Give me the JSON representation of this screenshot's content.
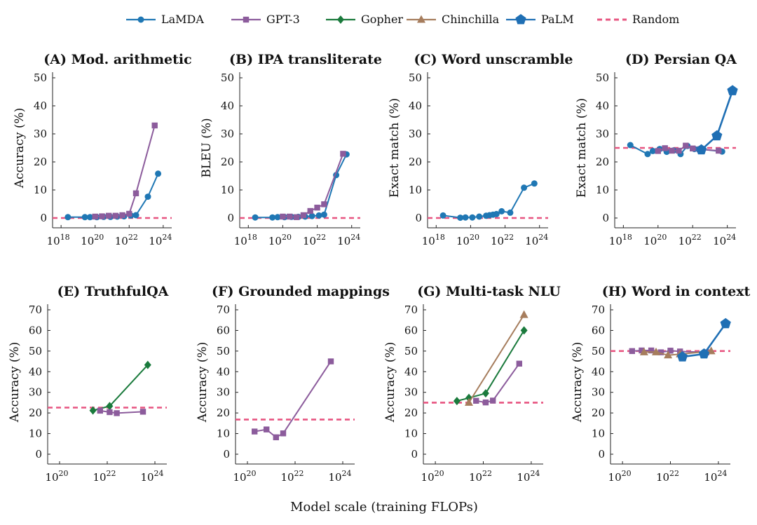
{
  "legend": [
    {
      "name": "LaMDA",
      "color": "#1f77b4",
      "marker": "circle"
    },
    {
      "name": "GPT-3",
      "color": "#8c5c9c",
      "marker": "square"
    },
    {
      "name": "Gopher",
      "color": "#1a7a3c",
      "marker": "diamond"
    },
    {
      "name": "Chinchilla",
      "color": "#a67d5d",
      "marker": "triangle"
    },
    {
      "name": "PaLM",
      "color": "#1f6fb4",
      "marker": "pentagon"
    },
    {
      "name": "Random",
      "color": "#e75480",
      "marker": "dashed-line"
    }
  ],
  "xlabel": "Model scale (training FLOPs)",
  "chart_data": [
    {
      "type": "line",
      "title": "(A) Mod. arithmetic",
      "ylabel": "Accuracy (%)",
      "ylim": [
        0,
        50
      ],
      "yticks": [
        0,
        10,
        20,
        30,
        40,
        50
      ],
      "xlim_log10": [
        17.5,
        24.5
      ],
      "xticks_log10": [
        18,
        20,
        22,
        24
      ],
      "random": 0,
      "series": [
        {
          "name": "LaMDA",
          "x_log10": [
            18.4,
            19.4,
            19.7,
            20.1,
            20.5,
            20.9,
            21.3,
            21.7,
            22.1,
            22.4,
            23.1,
            23.7
          ],
          "y": [
            0.3,
            0.3,
            0.3,
            0.3,
            0.4,
            0.4,
            0.5,
            0.6,
            0.9,
            1.0,
            7.6,
            15.8
          ]
        },
        {
          "name": "GPT-3",
          "x_log10": [
            20.0,
            20.4,
            20.8,
            21.2,
            21.6,
            22.0,
            22.4,
            23.5
          ],
          "y": [
            0.5,
            0.6,
            0.8,
            0.8,
            1.0,
            1.5,
            8.8,
            33.0
          ]
        }
      ]
    },
    {
      "type": "line",
      "title": "(B) IPA transliterate",
      "ylabel": "BLEU (%)",
      "ylim": [
        0,
        50
      ],
      "yticks": [
        0,
        10,
        20,
        30,
        40,
        50
      ],
      "xlim_log10": [
        17.5,
        24.5
      ],
      "xticks_log10": [
        18,
        20,
        22,
        24
      ],
      "random": 0,
      "series": [
        {
          "name": "LaMDA",
          "x_log10": [
            18.4,
            19.4,
            19.7,
            20.1,
            20.5,
            20.9,
            21.3,
            21.7,
            22.1,
            22.4,
            23.1,
            23.7
          ],
          "y": [
            0.2,
            0.2,
            0.3,
            0.3,
            0.4,
            0.4,
            0.5,
            0.7,
            0.9,
            1.2,
            15.3,
            22.7
          ]
        },
        {
          "name": "GPT-3",
          "x_log10": [
            20.0,
            20.4,
            20.8,
            21.2,
            21.6,
            22.0,
            22.4,
            23.5
          ],
          "y": [
            0.5,
            0.5,
            0.3,
            1.0,
            2.5,
            3.7,
            4.9,
            22.9
          ]
        }
      ]
    },
    {
      "type": "line",
      "title": "(C) Word unscramble",
      "ylabel": "Exact match (%)",
      "ylim": [
        0,
        50
      ],
      "yticks": [
        0,
        10,
        20,
        30,
        40,
        50
      ],
      "xlim_log10": [
        17.5,
        24.5
      ],
      "xticks_log10": [
        18,
        20,
        22,
        24
      ],
      "random": 0,
      "series": [
        {
          "name": "LaMDA",
          "x_log10": [
            18.4,
            19.4,
            19.7,
            20.1,
            20.5,
            20.9,
            21.1,
            21.3,
            21.5,
            21.8,
            22.3,
            23.1,
            23.7
          ],
          "y": [
            0.9,
            0.1,
            0.2,
            0.2,
            0.5,
            0.8,
            1.0,
            1.2,
            1.4,
            2.4,
            1.9,
            10.8,
            12.3
          ]
        }
      ]
    },
    {
      "type": "line",
      "title": "(D) Persian QA",
      "ylabel": "Exact match (%)",
      "ylim": [
        0,
        50
      ],
      "yticks": [
        0,
        10,
        20,
        30,
        40,
        50
      ],
      "xlim_log10": [
        17.5,
        24.5
      ],
      "xticks_log10": [
        18,
        20,
        22,
        24
      ],
      "random": 25,
      "series": [
        {
          "name": "LaMDA",
          "x_log10": [
            18.4,
            19.4,
            19.7,
            20.1,
            20.5,
            20.9,
            21.3,
            21.7,
            22.1,
            22.4,
            23.7
          ],
          "y": [
            26.0,
            22.8,
            23.9,
            24.6,
            23.6,
            24.1,
            22.8,
            25.7,
            24.6,
            24.6,
            23.7
          ]
        },
        {
          "name": "GPT-3",
          "x_log10": [
            20.0,
            20.4,
            20.8,
            21.2,
            21.6,
            22.0,
            22.4,
            23.5
          ],
          "y": [
            23.9,
            24.9,
            24.0,
            24.0,
            25.8,
            24.8,
            24.5,
            24.0
          ]
        },
        {
          "name": "PaLM",
          "x_log10": [
            22.5,
            23.4,
            24.3
          ],
          "y": [
            24.3,
            29.3,
            45.4
          ]
        }
      ]
    },
    {
      "type": "line",
      "title": "(E) TruthfulQA",
      "ylabel": "Accuracy (%)",
      "ylim": [
        0,
        70
      ],
      "yticks": [
        0,
        10,
        20,
        30,
        40,
        50,
        60,
        70
      ],
      "xlim_log10": [
        19.5,
        24.5
      ],
      "xticks_log10": [
        20,
        22,
        24
      ],
      "random": 22.6,
      "series": [
        {
          "name": "Gopher",
          "x_log10": [
            21.4,
            22.1,
            23.7
          ],
          "y": [
            21.2,
            23.3,
            43.3
          ]
        },
        {
          "name": "GPT-3",
          "x_log10": [
            21.7,
            22.1,
            22.4,
            23.5
          ],
          "y": [
            21.1,
            20.4,
            19.9,
            20.6
          ]
        }
      ]
    },
    {
      "type": "line",
      "title": "(F) Grounded mappings",
      "ylabel": "Accuracy (%)",
      "ylim": [
        0,
        70
      ],
      "yticks": [
        0,
        10,
        20,
        30,
        40,
        50,
        60,
        70
      ],
      "xlim_log10": [
        19.5,
        24.5
      ],
      "xticks_log10": [
        20,
        22,
        24
      ],
      "random": 16.8,
      "series": [
        {
          "name": "GPT-3",
          "x_log10": [
            20.3,
            20.8,
            21.2,
            21.5,
            23.5
          ],
          "y": [
            11.0,
            12.0,
            8.2,
            10.1,
            45.0
          ]
        }
      ]
    },
    {
      "type": "line",
      "title": "(G) Multi-task NLU",
      "ylabel": "Accuracy (%)",
      "ylim": [
        0,
        70
      ],
      "yticks": [
        0,
        10,
        20,
        30,
        40,
        50,
        60,
        70
      ],
      "xlim_log10": [
        19.5,
        24.5
      ],
      "xticks_log10": [
        20,
        22,
        24
      ],
      "random": 25,
      "series": [
        {
          "name": "Gopher",
          "x_log10": [
            20.9,
            21.4,
            22.1,
            23.7
          ],
          "y": [
            25.8,
            27.3,
            29.5,
            60.0
          ]
        },
        {
          "name": "Chinchilla",
          "x_log10": [
            21.4,
            23.7
          ],
          "y": [
            25.0,
            67.6
          ]
        },
        {
          "name": "GPT-3",
          "x_log10": [
            21.7,
            22.1,
            22.4,
            23.5
          ],
          "y": [
            25.9,
            25.1,
            26.0,
            43.9
          ]
        }
      ]
    },
    {
      "type": "line",
      "title": "(H) Word in context",
      "ylabel": "Accuracy (%)",
      "ylim": [
        0,
        70
      ],
      "yticks": [
        0,
        10,
        20,
        30,
        40,
        50,
        60,
        70
      ],
      "xlim_log10": [
        19.5,
        24.5
      ],
      "xticks_log10": [
        20,
        22,
        24
      ],
      "random": 50,
      "series": [
        {
          "name": "GPT-3",
          "x_log10": [
            20.4,
            20.8,
            21.2,
            21.6,
            22.0,
            22.4,
            23.5
          ],
          "y": [
            50.0,
            50.3,
            50.3,
            49.4,
            50.2,
            49.8,
            49.4
          ]
        },
        {
          "name": "Chinchilla",
          "x_log10": [
            20.9,
            21.4,
            21.9,
            22.4,
            23.7
          ],
          "y": [
            49.5,
            49.5,
            48.0,
            48.5,
            50.0
          ]
        },
        {
          "name": "PaLM",
          "x_log10": [
            22.5,
            23.4,
            24.3
          ],
          "y": [
            47.2,
            48.6,
            63.3
          ]
        }
      ]
    }
  ]
}
